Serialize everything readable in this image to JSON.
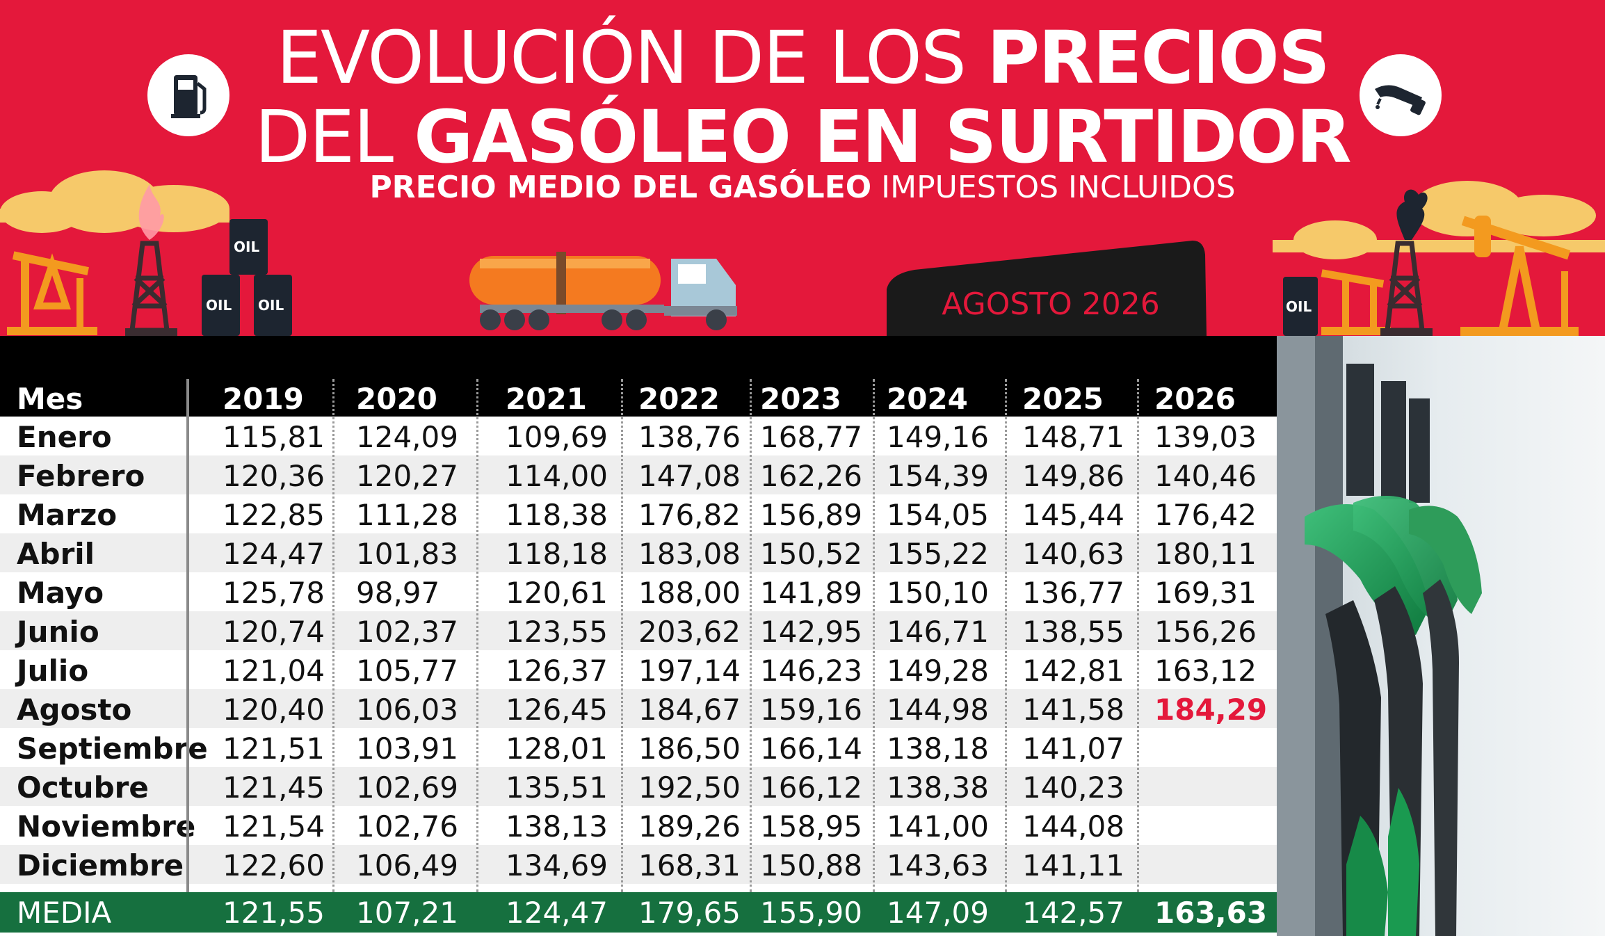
{
  "header": {
    "title_line1_light": "EVOLUCIÓN DE LOS ",
    "title_line1_bold": "PRECIOS",
    "title_line2_light": "DEL ",
    "title_line2_bold": "GASÓLEO EN SURTIDOR",
    "subtitle_bold": "PRECIO MEDIO DEL GASÓLEO",
    "subtitle_light": " IMPUESTOS INCLUIDOS",
    "date_tab": "AGOSTO 2026",
    "barrel_label": "OIL",
    "icons": [
      "fuel-pump-icon",
      "fuel-nozzle-icon"
    ]
  },
  "colors": {
    "banner_red": "#e4183b",
    "header_black": "#000000",
    "media_green": "#16703f",
    "highlight_red": "#e4183b",
    "oil_orange": "#f39a1f",
    "cloud_yellow": "#f6c96a"
  },
  "chart_data": {
    "type": "table",
    "columns": [
      "Mes",
      "2019",
      "2020",
      "2021",
      "2022",
      "2023",
      "2024",
      "2025",
      "2026"
    ],
    "rows": [
      [
        "Enero",
        "115,81",
        "124,09",
        "109,69",
        "138,76",
        "168,77",
        "149,16",
        "148,71",
        "139,03"
      ],
      [
        "Febrero",
        "120,36",
        "120,27",
        "114,00",
        "147,08",
        "162,26",
        "154,39",
        "149,86",
        "140,46"
      ],
      [
        "Marzo",
        "122,85",
        "111,28",
        "118,38",
        "176,82",
        "156,89",
        "154,05",
        "145,44",
        "176,42"
      ],
      [
        "Abril",
        "124,47",
        "101,83",
        "118,18",
        "183,08",
        "150,52",
        "155,22",
        "140,63",
        "180,11"
      ],
      [
        "Mayo",
        "125,78",
        "98,97",
        "120,61",
        "188,00",
        "141,89",
        "150,10",
        "136,77",
        "169,31"
      ],
      [
        "Junio",
        "120,74",
        "102,37",
        "123,55",
        "203,62",
        "142,95",
        "146,71",
        "138,55",
        "156,26"
      ],
      [
        "Julio",
        "121,04",
        "105,77",
        "126,37",
        "197,14",
        "146,23",
        "149,28",
        "142,81",
        "163,12"
      ],
      [
        "Agosto",
        "120,40",
        "106,03",
        "126,45",
        "184,67",
        "159,16",
        "144,98",
        "141,58",
        "184,29"
      ],
      [
        "Septiembre",
        "121,51",
        "103,91",
        "128,01",
        "186,50",
        "166,14",
        "138,18",
        "141,07",
        ""
      ],
      [
        "Octubre",
        "121,45",
        "102,69",
        "135,51",
        "192,50",
        "166,12",
        "138,38",
        "140,23",
        ""
      ],
      [
        "Noviembre",
        "121,54",
        "102,76",
        "138,13",
        "189,26",
        "158,95",
        "141,00",
        "144,08",
        ""
      ],
      [
        "Diciembre",
        "122,60",
        "106,49",
        "134,69",
        "168,31",
        "150,88",
        "143,63",
        "141,11",
        ""
      ]
    ],
    "summary_row": [
      "MEDIA",
      "121,55",
      "107,21",
      "124,47",
      "179,65",
      "155,90",
      "147,09",
      "142,57",
      "163,63"
    ],
    "highlight_cell": {
      "row": "Agosto",
      "column": "2026",
      "value": "184,29"
    }
  }
}
